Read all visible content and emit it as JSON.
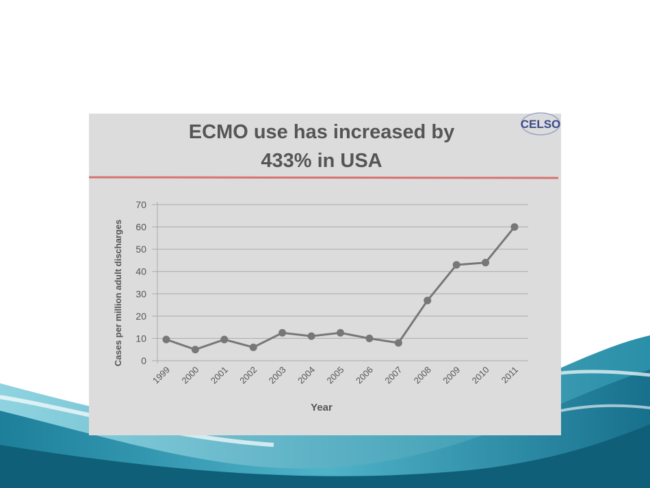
{
  "chart_data": {
    "type": "line",
    "title": "ECMO use has increased by 433% in USA",
    "logo": "CELSO",
    "x_label": "Year",
    "y_label": "Cases per million adult discharges",
    "categories": [
      "1999",
      "2000",
      "2001",
      "2002",
      "2003",
      "2004",
      "2005",
      "2006",
      "2007",
      "2008",
      "2009",
      "2010",
      "2011"
    ],
    "values": [
      9.5,
      5,
      9.5,
      6,
      12.5,
      11,
      12.5,
      10,
      8,
      27,
      43,
      44,
      60
    ],
    "color": "#777777",
    "ylim": [
      0,
      70
    ],
    "yticks": [
      0,
      10,
      20,
      30,
      40,
      50,
      60,
      70
    ],
    "grid": true
  }
}
